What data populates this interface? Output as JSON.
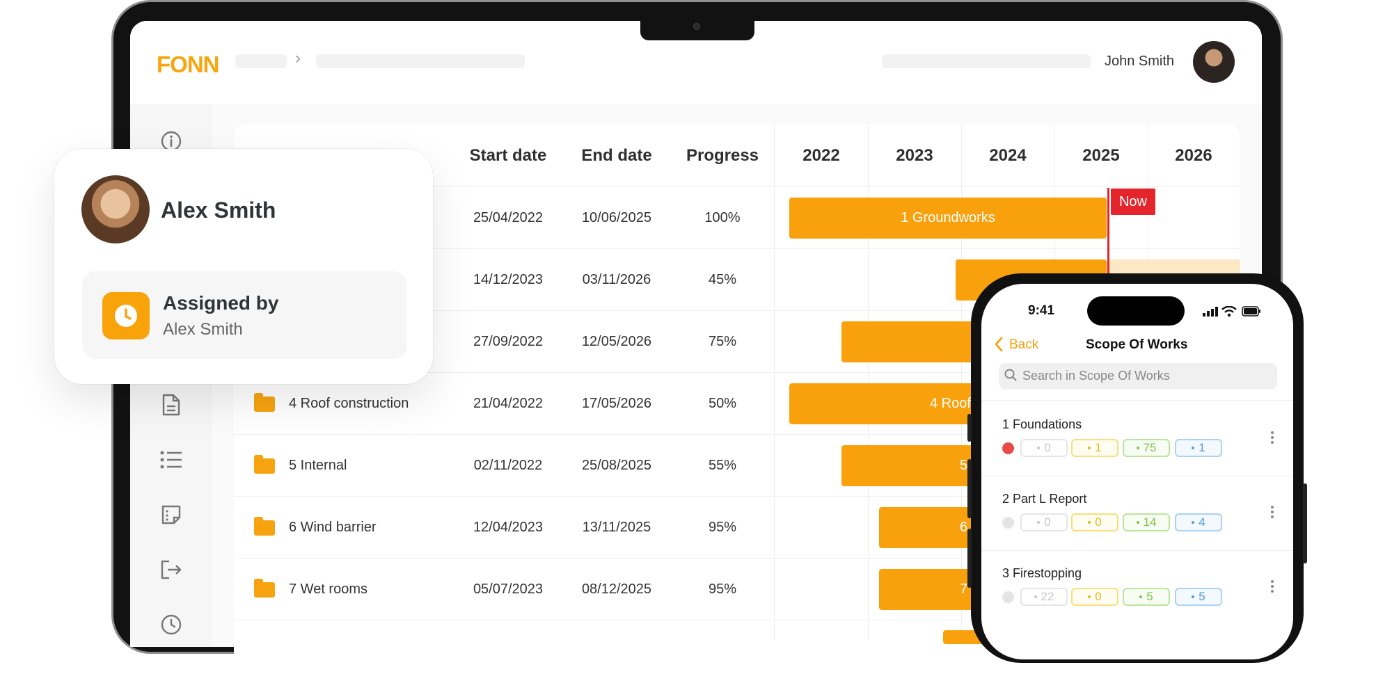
{
  "app": {
    "logo_text": "FONN"
  },
  "header": {
    "user_name": "John Smith"
  },
  "table": {
    "columns": {
      "start": "Start date",
      "end": "End date",
      "progress": "Progress"
    },
    "years": [
      "2022",
      "2023",
      "2024",
      "2025",
      "2026"
    ],
    "rows": [
      {
        "name": "",
        "start": "25/04/2022",
        "end": "10/06/2025",
        "progress": "100%"
      },
      {
        "name": "",
        "start": "14/12/2023",
        "end": "03/11/2026",
        "progress": "45%"
      },
      {
        "name": "",
        "start": "27/09/2022",
        "end": "12/05/2026",
        "progress": "75%"
      },
      {
        "name": "4 Roof construction",
        "start": "21/04/2022",
        "end": "17/05/2026",
        "progress": "50%"
      },
      {
        "name": "5 Internal",
        "start": "02/11/2022",
        "end": "25/08/2025",
        "progress": "55%"
      },
      {
        "name": "6 Wind barrier",
        "start": "12/04/2023",
        "end": "13/11/2025",
        "progress": "95%"
      },
      {
        "name": "7 Wet rooms",
        "start": "05/07/2023",
        "end": "08/12/2025",
        "progress": "95%"
      }
    ]
  },
  "gantt": {
    "bar_labels": [
      "1 Groundworks",
      "",
      "",
      "4 Roof",
      "5",
      "6",
      "7"
    ],
    "now_label": "Now",
    "colors": {
      "bar": "#f9a10d",
      "now": "#e4262c"
    }
  },
  "profile_card": {
    "name": "Alex Smith",
    "assigned_label": "Assigned by",
    "assigned_by": "Alex Smith"
  },
  "phone": {
    "time": "9:41",
    "back_label": "Back",
    "title": "Scope Of Works",
    "search_placeholder": "Search in Scope Of Works",
    "items": [
      {
        "title": "1 Foundations",
        "counts": [
          "0",
          "1",
          "75",
          "1"
        ]
      },
      {
        "title": "2 Part L Report",
        "counts": [
          "0",
          "0",
          "14",
          "4"
        ]
      },
      {
        "title": "3 Firestopping",
        "counts": [
          "22",
          "0",
          "5",
          "5"
        ]
      }
    ]
  }
}
